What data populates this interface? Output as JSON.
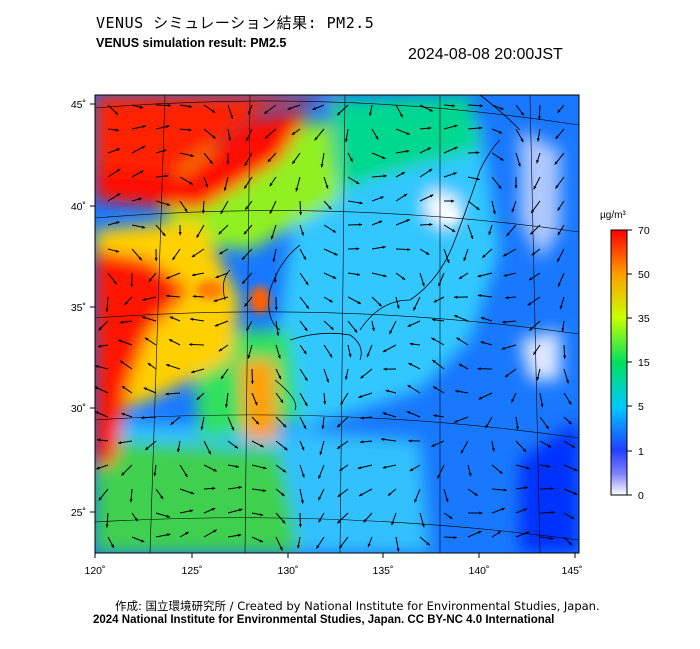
{
  "title_jp": "VENUS シミュレーション結果: PM2.5",
  "title_en": "VENUS simulation result: PM2.5",
  "datetime": "2024-08-08 20:00JST",
  "colorbar": {
    "unit": "µg/m³",
    "ticks": [
      {
        "label": "70",
        "value": 70
      },
      {
        "label": "50",
        "value": 50
      },
      {
        "label": "35",
        "value": 35
      },
      {
        "label": "15",
        "value": 15
      },
      {
        "label": "5",
        "value": 5
      },
      {
        "label": "1",
        "value": 1
      },
      {
        "label": "0",
        "value": 0
      }
    ],
    "colors": [
      "#ffffff",
      "#2040ff",
      "#00c8ff",
      "#00e060",
      "#c8ff00",
      "#ffc000",
      "#ff0000"
    ]
  },
  "axes": {
    "lon_ticks": [
      "120˚",
      "125˚",
      "130˚",
      "135˚",
      "140˚",
      "145˚"
    ],
    "lat_ticks": [
      "45˚",
      "40˚",
      "35˚",
      "30˚",
      "25˚"
    ]
  },
  "footer": {
    "line1": "作成: 国立環境研究所 / Created by National Institute for Environmental Studies, Japan.",
    "line2": "2024 National Institute for Environmental Studies, Japan. CC BY-NC 4.0 International"
  },
  "legend_colors": {
    "very_low": "#ffffff",
    "low": "#2050ff",
    "moderate": "#00d0ff",
    "medium": "#00d060",
    "elevated": "#ffc000",
    "high": "#ff0000"
  }
}
